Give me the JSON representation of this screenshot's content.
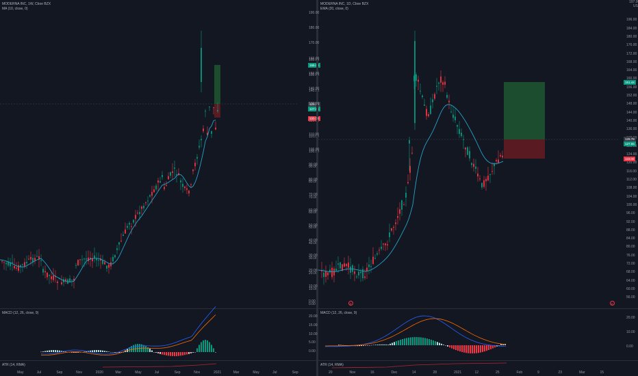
{
  "colors": {
    "background": "#131722",
    "up": "#089981",
    "down": "#f23645",
    "ma": "#26a1c9",
    "macd_line": "#2962ff",
    "signal_line": "#ff6d00",
    "atr": "#b22833",
    "profit_zone": "#1b4d2e",
    "loss_zone": "#5a1a22"
  },
  "left": {
    "legend_title": "MODERNA INC, 1W, Cboe BZX",
    "legend_ma": "MA (10, close, 0)",
    "legend_macd": "MACD (12, 26, close, 9)",
    "legend_atr": "ATR (14, RMA)",
    "badges": {
      "target": "155.00",
      "price": "129.79",
      "entry": "127.55",
      "stop": "120.00"
    },
    "price_ticks": [
      "160.00",
      "150.00",
      "140.00",
      "130.00",
      "120.00",
      "110.00",
      "100.00",
      "90.00",
      "80.00",
      "70.00",
      "60.00",
      "50.00",
      "40.00",
      "30.00",
      "20.00",
      "10.00",
      "0.00"
    ],
    "x_ticks": [
      "May",
      "Jul",
      "Sep",
      "Nov",
      "2020",
      "Mar",
      "May",
      "Jul",
      "Sep",
      "Nov",
      "2021",
      "Mar",
      "May",
      "Jul",
      "Sep"
    ]
  },
  "right": {
    "legend_title": "MODERNA INC, 1D, Cboe BZX",
    "legend_ema": "EMA (20, close, 0)",
    "legend_macd": "MACD (12, 26, close, 9)",
    "legend_atr": "ATR (14, RMA)",
    "marker_label": "E",
    "badges": {
      "target": "151.44",
      "price": "129.79",
      "entry": "127.55",
      "stop": "119.00"
    },
    "mid_ticks": [
      "190.00",
      "180.00",
      "170.00",
      "160.00",
      "150.00",
      "140.00",
      "130.00",
      "120.00",
      "110.00",
      "100.00",
      "90.00",
      "80.00",
      "70.00",
      "60.00",
      "50.00",
      "40.00",
      "30.00",
      "20.00",
      "10.00",
      "0.00"
    ],
    "right_ticks": [
      "USD",
      "196.00",
      "184.00",
      "180.00",
      "176.00",
      "172.00",
      "168.00",
      "164.00",
      "160.00",
      "156.00",
      "152.00",
      "148.00",
      "144.00",
      "140.00",
      "136.00",
      "132.00",
      "128.00",
      "124.00",
      "120.00",
      "116.00",
      "112.00",
      "108.00",
      "104.00",
      "100.00",
      "96.00",
      "92.00",
      "88.00",
      "84.00",
      "80.00",
      "76.00",
      "72.00",
      "68.00",
      "64.00",
      "60.00",
      "56.00"
    ],
    "top_right_labels": [
      "197.00",
      "USD"
    ],
    "macd_ticks_left": [
      "20.00",
      "15.00",
      "10.00",
      "5.00",
      "0.00"
    ],
    "macd_ticks_right": [
      "20.00",
      "10.00",
      "0.00"
    ],
    "x_ticks": [
      "20",
      "Nov",
      "16",
      "Dec",
      "14",
      "28",
      "2021",
      "12",
      "25",
      "Feb",
      "9",
      "23",
      "Mar",
      "15"
    ]
  }
}
